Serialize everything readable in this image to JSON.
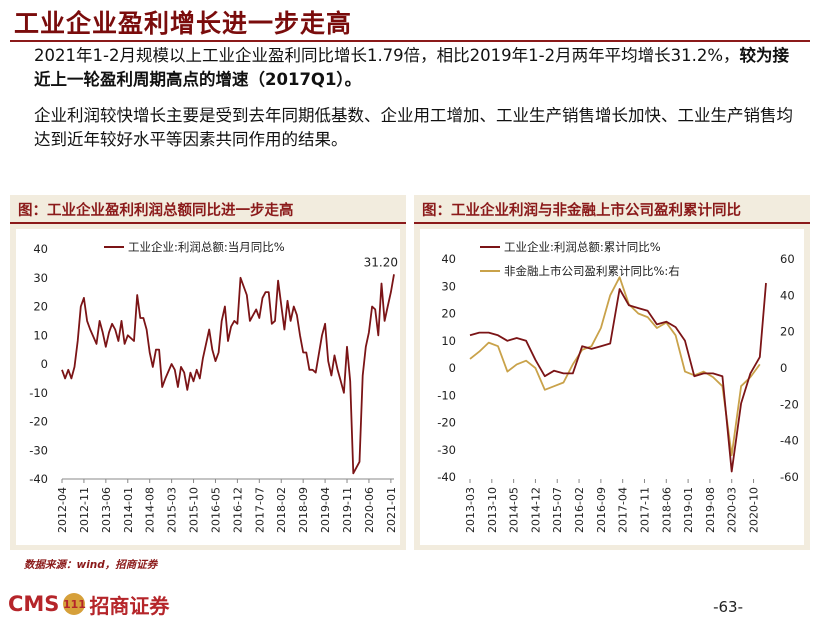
{
  "title": "工业企业盈利增长进一步走高",
  "para1": {
    "normal": "2021年1-2月规模以上工业企业盈利同比增长1.79倍，相比2019年1-2月两年平均增长31.2%，",
    "bold": "较为接近上一轮盈利周期高点的增速（2017Q1）。"
  },
  "para2": "企业利润较快增长主要是受到去年同期低基数、企业用工增加、工业生产销售增长加快、工业生产销售均达到近年较好水平等因素共同作用的结果。",
  "source": "数据来源：wind，招商证券",
  "footer": {
    "logo_cms": "CMS",
    "logo_badge": "111",
    "logo_cn": "招商证券",
    "page": "-63-"
  },
  "colors": {
    "accent": "#8b1a1a",
    "series1": "#7b1416",
    "series2": "#c9a24a",
    "panel_bg": "#f2ecde"
  },
  "chart_data": [
    {
      "type": "line",
      "title": "图：工业企业盈利利润总额同比进一步走高",
      "series": [
        {
          "name": "工业企业:利润总额:当月同比%",
          "x": [
            "2012-04",
            "2012-05",
            "2012-06",
            "2012-07",
            "2012-08",
            "2012-09",
            "2012-10",
            "2012-11",
            "2012-12",
            "2013-01",
            "2013-03",
            "2013-04",
            "2013-05",
            "2013-06",
            "2013-07",
            "2013-08",
            "2013-09",
            "2013-10",
            "2013-11",
            "2013-12",
            "2014-01",
            "2014-03",
            "2014-04",
            "2014-05",
            "2014-06",
            "2014-07",
            "2014-08",
            "2014-09",
            "2014-10",
            "2014-11",
            "2014-12",
            "2015-01",
            "2015-03",
            "2015-04",
            "2015-05",
            "2015-06",
            "2015-07",
            "2015-08",
            "2015-09",
            "2015-10",
            "2015-11",
            "2015-12",
            "2016-01",
            "2016-03",
            "2016-04",
            "2016-05",
            "2016-06",
            "2016-07",
            "2016-08",
            "2016-09",
            "2016-10",
            "2016-11",
            "2016-12",
            "2017-01",
            "2017-03",
            "2017-04",
            "2017-05",
            "2017-06",
            "2017-07",
            "2017-08",
            "2017-09",
            "2017-10",
            "2017-11",
            "2017-12",
            "2018-01",
            "2018-03",
            "2018-04",
            "2018-05",
            "2018-06",
            "2018-07",
            "2018-08",
            "2018-09",
            "2018-10",
            "2018-11",
            "2018-12",
            "2019-01",
            "2019-03",
            "2019-04",
            "2019-05",
            "2019-06",
            "2019-07",
            "2019-08",
            "2019-09",
            "2019-10",
            "2019-11",
            "2019-12",
            "2020-01",
            "2020-03",
            "2020-04",
            "2020-05",
            "2020-06",
            "2020-07",
            "2020-08",
            "2020-09",
            "2020-10",
            "2020-11",
            "2020-12",
            "2021-01",
            "2021-02"
          ],
          "values": [
            -2,
            -5,
            -2,
            -5,
            -1,
            8,
            20,
            23,
            15,
            12,
            7,
            15,
            11,
            6,
            11,
            14,
            12,
            8,
            15,
            7,
            10,
            8,
            24,
            16,
            16,
            12,
            4,
            -1,
            5,
            5,
            -8,
            -5,
            0,
            -2,
            -8,
            -1,
            -3,
            -9,
            -3,
            -6,
            -2,
            -5,
            2,
            12,
            5,
            1,
            4,
            15,
            20,
            8,
            13,
            15,
            14,
            30,
            24,
            15,
            17,
            19,
            16,
            23,
            25,
            25,
            14,
            15,
            29,
            12,
            22,
            15,
            20,
            17,
            10,
            4,
            4,
            -2,
            -2,
            -3,
            10,
            14,
            1,
            -4,
            3,
            -2,
            -6,
            -10,
            6,
            -6,
            -38,
            -34,
            -4,
            6,
            11,
            20,
            19,
            10,
            28,
            15,
            20,
            25,
            31.2
          ],
          "end_label": "31.20",
          "color": "#7b1416"
        }
      ],
      "xticks": [
        "2012-04",
        "2012-11",
        "2013-06",
        "2014-01",
        "2014-08",
        "2015-03",
        "2015-10",
        "2016-05",
        "2016-12",
        "2017-07",
        "2018-02",
        "2018-09",
        "2019-04",
        "2019-11",
        "2020-06",
        "2021-01"
      ],
      "yticks": [
        40,
        30,
        20,
        10,
        0,
        -10,
        -20,
        -30,
        -40
      ],
      "ylim": [
        -40,
        40
      ]
    },
    {
      "type": "line",
      "title": "图：工业企业利润与非金融上市公司盈利累计同比",
      "series": [
        {
          "name": "工业企业:利润总额:累计同比%",
          "axis": "left",
          "x": [
            "2013-03",
            "2013-06",
            "2013-09",
            "2013-12",
            "2014-03",
            "2014-06",
            "2014-09",
            "2014-12",
            "2015-03",
            "2015-06",
            "2015-09",
            "2015-12",
            "2016-03",
            "2016-06",
            "2016-09",
            "2016-12",
            "2017-03",
            "2017-06",
            "2017-09",
            "2017-12",
            "2018-03",
            "2018-06",
            "2018-09",
            "2018-12",
            "2019-03",
            "2019-06",
            "2019-09",
            "2019-12",
            "2020-03",
            "2020-06",
            "2020-09",
            "2020-12",
            "2021-02"
          ],
          "values": [
            12,
            13,
            13,
            12,
            10,
            11,
            10,
            3,
            -3,
            -1,
            -2,
            -2,
            8,
            7,
            8,
            9,
            29,
            23,
            22,
            21,
            16,
            17,
            15,
            10,
            -3,
            -2,
            -2,
            -3,
            -38,
            -13,
            -2,
            4,
            31.2
          ],
          "color": "#7b1416"
        },
        {
          "name": "非金融上市公司盈利累计同比%:右",
          "axis": "right",
          "x": [
            "2013-03",
            "2013-06",
            "2013-09",
            "2013-12",
            "2014-03",
            "2014-06",
            "2014-09",
            "2014-12",
            "2015-03",
            "2015-06",
            "2015-09",
            "2015-12",
            "2016-03",
            "2016-06",
            "2016-09",
            "2016-12",
            "2017-03",
            "2017-06",
            "2017-09",
            "2017-12",
            "2018-03",
            "2018-06",
            "2018-09",
            "2018-12",
            "2019-03",
            "2019-06",
            "2019-09",
            "2019-12",
            "2020-03",
            "2020-06",
            "2020-09",
            "2020-12"
          ],
          "values": [
            5,
            9,
            14,
            12,
            -2,
            2,
            4,
            0,
            -12,
            -10,
            -8,
            2,
            10,
            12,
            22,
            40,
            50,
            35,
            30,
            28,
            22,
            25,
            18,
            -2,
            -4,
            -2,
            -5,
            -10,
            -48,
            -10,
            -5,
            2
          ],
          "color": "#c9a24a"
        }
      ],
      "xticks": [
        "2013-03",
        "2013-10",
        "2014-05",
        "2014-12",
        "2015-07",
        "2016-02",
        "2016-09",
        "2017-04",
        "2017-11",
        "2018-06",
        "2019-01",
        "2019-08",
        "2020-03",
        "2020-10"
      ],
      "yticks_left": [
        40,
        30,
        20,
        10,
        0,
        -10,
        -20,
        -30,
        -40
      ],
      "yticks_right": [
        60,
        40,
        20,
        0,
        -20,
        -40,
        -60
      ],
      "ylim_left": [
        -40,
        40
      ],
      "ylim_right": [
        -60,
        60
      ]
    }
  ]
}
